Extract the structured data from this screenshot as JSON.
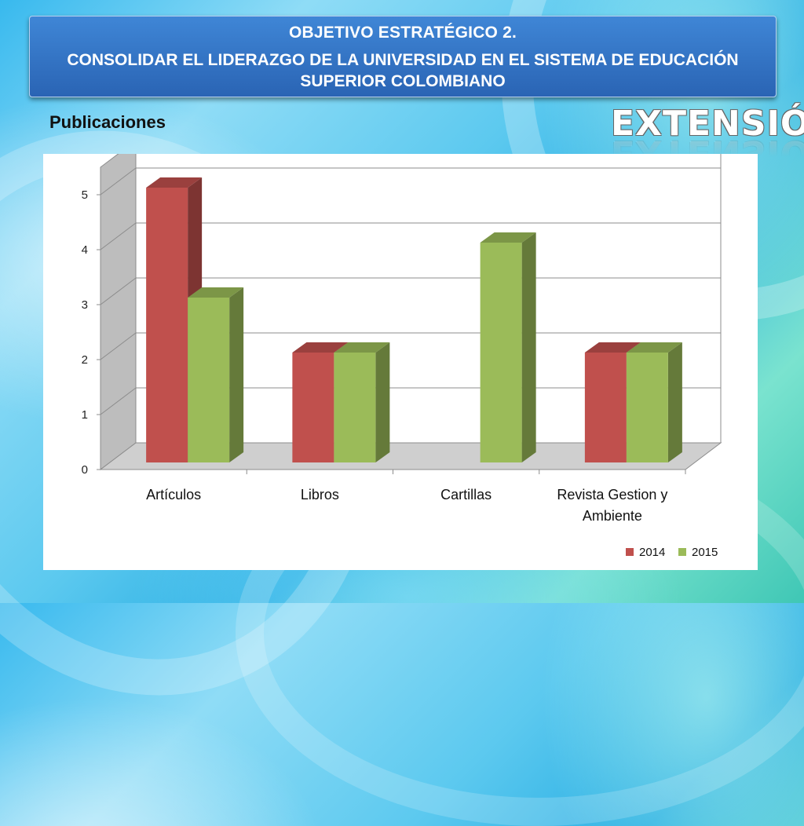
{
  "header": {
    "line1": "OBJETIVO ESTRATÉGICO 2.",
    "line2": "CONSOLIDAR EL LIDERAZGO DE LA UNIVERSIDAD EN EL SISTEMA DE EDUCACIÓN SUPERIOR COLOMBIANO"
  },
  "section_word": "EXTENSIÓN",
  "colors": {
    "series_2014": "#c0504d",
    "series_2015": "#9bbb59",
    "title_box": "#2f6fc4"
  },
  "chart_data": {
    "type": "bar",
    "title": "Publicaciones",
    "categories": [
      "Artículos",
      "Libros",
      "Cartillas",
      "Revista Gestion y Ambiente"
    ],
    "series": [
      {
        "name": "2014",
        "values": [
          5,
          2,
          0,
          2
        ]
      },
      {
        "name": "2015",
        "values": [
          3,
          2,
          4,
          2
        ]
      }
    ],
    "ylim": [
      0,
      5
    ],
    "yticks": [
      0,
      1,
      2,
      3,
      4,
      5
    ],
    "grid": true,
    "style": "3d",
    "legend": "bottom-right"
  }
}
